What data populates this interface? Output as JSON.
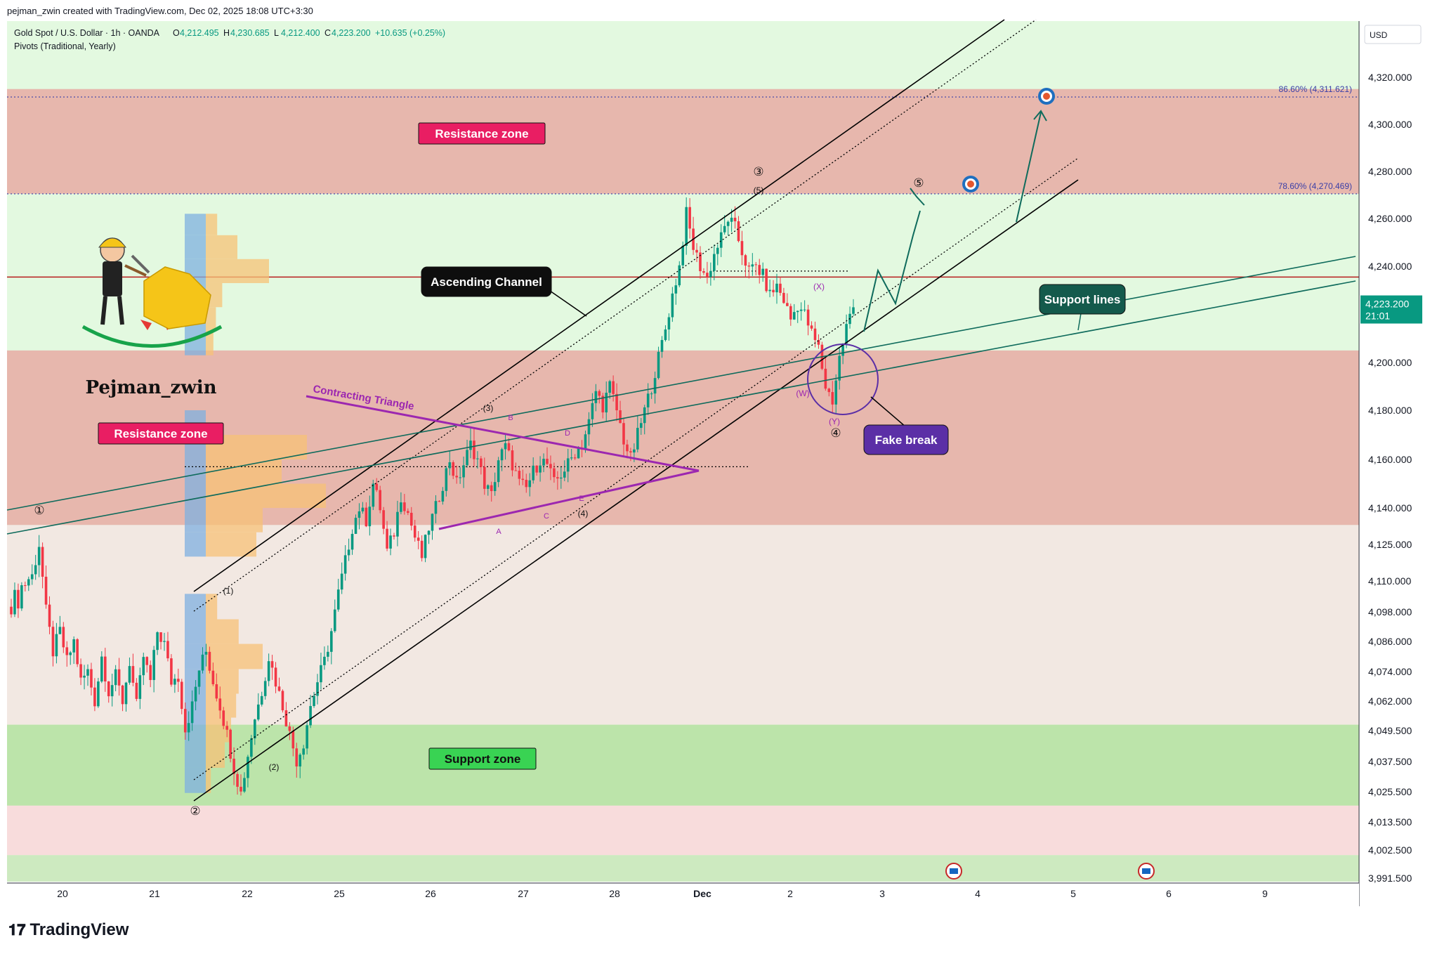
{
  "header": {
    "credit": "pejman_zwin created with TradingView.com, Dec 02, 2025 18:08 UTC+3:30",
    "symbol": "Gold Spot / U.S. Dollar · 1h · OANDA",
    "ohlc": [
      {
        "k": "O",
        "v": "4,212.495"
      },
      {
        "k": "H",
        "v": "4,230.685"
      },
      {
        "k": "L",
        "v": "4,212.400"
      },
      {
        "k": "C",
        "v": "4,223.200"
      }
    ],
    "change": "+10.635 (+0.25%)",
    "indicator": "Pivots (Traditional, Yearly)"
  },
  "currency": "USD",
  "last_price": {
    "price": "4,223.200",
    "countdown": "21:01"
  },
  "branding": {
    "author": "Pejman_zwin",
    "logo": "TradingView"
  },
  "colors": {
    "up": "#089981",
    "down": "#f23645",
    "resistance": "#e8a09c",
    "support": "#a8d98e",
    "green_bg": "#e3f9e0",
    "pink_bg": "#f8dcdc",
    "channel": "#000000",
    "triangle": "#9c27b0",
    "support_lines": "#0f6b5c",
    "fake_break": "#5b2fa6",
    "pivot": "#b71c1c"
  },
  "chart_data": {
    "type": "candlestick",
    "instrument": "Gold Spot / U.S. Dollar",
    "timeframe": "1h",
    "ylim": [
      3991.5,
      4335
    ],
    "y_ticks": [
      "4,320.000",
      "4,300.000",
      "4,280.000",
      "4,260.000",
      "4,240.000",
      "4,223.200",
      "4,200.000",
      "4,180.000",
      "4,160.000",
      "4,140.000",
      "4,125.000",
      "4,110.000",
      "4,098.000",
      "4,086.000",
      "4,074.000",
      "4,062.000",
      "4,049.500",
      "4,037.500",
      "4,025.500",
      "4,013.500",
      "4,002.500",
      "3,991.500"
    ],
    "x_ticks": [
      "20",
      "21",
      "22",
      "25",
      "26",
      "27",
      "28",
      "Dec",
      "2",
      "3",
      "4",
      "5",
      "6",
      "9"
    ],
    "zones": [
      {
        "label": "Resistance zone",
        "from": 4270.5,
        "to": 4315
      },
      {
        "label": "Resistance zone",
        "from": 4133,
        "to": 4205
      },
      {
        "label": "Support zone",
        "from": 4020,
        "to": 4052
      }
    ],
    "fib_levels": [
      {
        "label": "86.60% (4,311.621)",
        "price": 4311.621
      },
      {
        "label": "78.60% (4,270.469)",
        "price": 4270.469
      }
    ],
    "pivot_price": 4235.5,
    "annotations": [
      "Resistance zone",
      "Ascending Channel",
      "Contracting Triangle",
      "Support lines",
      "Fake break",
      "Support zone"
    ],
    "wave_labels": {
      "circled": [
        "①",
        "②",
        "③",
        "④",
        "⑤"
      ],
      "minor": [
        "(1)",
        "(2)",
        "(3)",
        "(4)",
        "(5)",
        "(W)",
        "(X)",
        "(Y)"
      ],
      "triangle": [
        "A",
        "B",
        "C",
        "D",
        "E"
      ]
    }
  }
}
